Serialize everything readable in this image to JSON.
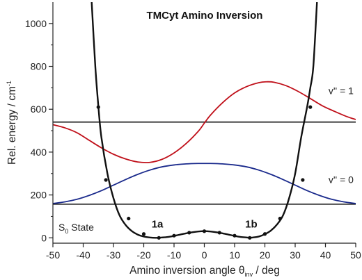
{
  "chart_data": {
    "type": "line",
    "title": "TMCyt Amino Inversion",
    "xlabel": {
      "main": "Amino inversion angle θ",
      "sub": "inv",
      "unit": " / deg"
    },
    "ylabel": {
      "main": "Rel. energy / cm",
      "sup": "-1"
    },
    "xlim": [
      -50,
      50
    ],
    "ylim": [
      -25,
      1100
    ],
    "x_ticks": [
      -50,
      -40,
      -30,
      -20,
      -10,
      0,
      10,
      20,
      30,
      40,
      50
    ],
    "y_ticks": [
      0,
      200,
      400,
      600,
      800,
      1000
    ],
    "y_minor_ticks": [
      100,
      300,
      500,
      700,
      900
    ],
    "colors": {
      "potential": "#111111",
      "v1": "#c0101a",
      "v0": "#1a2a8c",
      "level": "#111111"
    },
    "potential": {
      "name": "",
      "curve_x": [
        -37.2,
        -36,
        -35,
        -34,
        -32,
        -30,
        -28,
        -26,
        -24,
        -22,
        -20,
        -18,
        -16,
        -14,
        -12,
        -10,
        -8,
        -6,
        -4,
        -2,
        0,
        2,
        4,
        6,
        8,
        10,
        12,
        14,
        15,
        16,
        18,
        20,
        22,
        24,
        26,
        28,
        30,
        32,
        34,
        35,
        36,
        37.2
      ],
      "curve_y": [
        1100,
        800,
        615,
        470,
        300,
        185,
        105,
        60,
        32,
        15,
        6,
        1.5,
        0,
        1.5,
        4,
        9,
        15,
        21,
        26,
        29.5,
        31,
        29.5,
        26,
        21,
        15,
        9,
        4,
        1.5,
        0,
        1.5,
        6,
        17,
        34,
        62,
        105,
        185,
        300,
        470,
        615,
        700,
        800,
        1100
      ],
      "points_x": [
        -35,
        -32.5,
        -25,
        -20,
        -15,
        -10,
        -5,
        0,
        5,
        10,
        15,
        20,
        25,
        32.5,
        35
      ],
      "points_y": [
        610,
        270,
        90,
        18,
        0,
        10,
        24,
        31,
        24,
        10,
        0,
        18,
        90,
        270,
        610
      ]
    },
    "levels": [
      {
        "name": "v'' = 0",
        "energy": 157
      },
      {
        "name": "v'' = 1",
        "energy": 540
      }
    ],
    "wavefunctions": [
      {
        "name": "v'' = 1",
        "x": [
          -50,
          -46,
          -42,
          -38,
          -34,
          -30,
          -26,
          -22,
          -18,
          -14,
          -10,
          -6,
          -2,
          0,
          2,
          6,
          10,
          14,
          18,
          20.5,
          23,
          27,
          31,
          35,
          39,
          43,
          47,
          50
        ],
        "y": [
          528,
          513,
          490,
          455,
          420,
          390,
          368,
          354,
          352,
          366,
          396,
          440,
          497,
          535,
          572,
          630,
          676,
          706,
          724,
          728,
          726,
          710,
          683,
          650,
          616,
          590,
          566,
          552
        ]
      },
      {
        "name": "v'' = 0",
        "x": [
          -50,
          -46,
          -42,
          -38,
          -34,
          -30,
          -26,
          -22,
          -18,
          -14,
          -10,
          -6,
          -2,
          0,
          2,
          6,
          10,
          14,
          18,
          22,
          26,
          30,
          34,
          38,
          42,
          46,
          50
        ],
        "y": [
          160,
          168,
          180,
          198,
          220,
          246,
          272,
          296,
          316,
          331,
          340,
          345,
          347,
          347,
          347,
          345,
          340,
          331,
          316,
          296,
          272,
          246,
          220,
          198,
          180,
          168,
          160
        ]
      }
    ],
    "annotations": [
      {
        "text": "1a",
        "x": -15.5,
        "y": 48
      },
      {
        "text": "1b",
        "x": 15.5,
        "y": 48
      },
      {
        "text": "v'' = 1",
        "x": 41,
        "y": 670
      },
      {
        "text": "v'' = 0",
        "x": 41,
        "y": 255
      }
    ],
    "state_label": {
      "main": "S",
      "sub": "0",
      "rest": " State"
    },
    "grid": false
  }
}
